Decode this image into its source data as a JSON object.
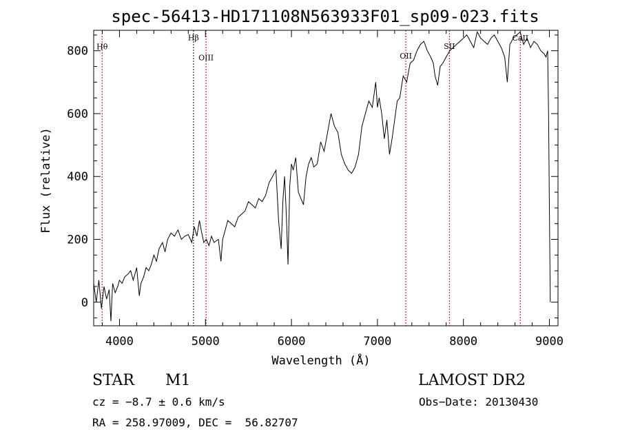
{
  "chart_data": {
    "type": "line",
    "title": "spec-56413-HD171108N563933F01_sp09-023.fits",
    "xlabel": "Wavelength (Å)",
    "ylabel": "Flux (relative)",
    "xlim": [
      3700,
      9100
    ],
    "ylim": [
      -75,
      865
    ],
    "xticks": [
      4000,
      5000,
      6000,
      7000,
      8000,
      9000
    ],
    "yticks": [
      0,
      200,
      400,
      600,
      800
    ],
    "grid": false,
    "series": [
      {
        "x": [
          3700,
          3730,
          3760,
          3790,
          3820,
          3850,
          3880,
          3900,
          3920,
          3950,
          3980,
          4000,
          4030,
          4060,
          4100,
          4130,
          4160,
          4200,
          4230,
          4250,
          4280,
          4310,
          4340,
          4370,
          4400,
          4430,
          4460,
          4500,
          4530,
          4560,
          4600,
          4640,
          4680,
          4720,
          4760,
          4800,
          4840,
          4870,
          4900,
          4930,
          4950,
          4980,
          5010,
          5040,
          5070,
          5100,
          5150,
          5180,
          5200,
          5230,
          5260,
          5300,
          5340,
          5380,
          5420,
          5460,
          5500,
          5540,
          5580,
          5620,
          5660,
          5700,
          5740,
          5780,
          5820,
          5850,
          5880,
          5900,
          5920,
          5940,
          5960,
          5980,
          6000,
          6020,
          6050,
          6080,
          6110,
          6140,
          6170,
          6200,
          6230,
          6260,
          6300,
          6340,
          6380,
          6420,
          6460,
          6500,
          6540,
          6580,
          6620,
          6660,
          6700,
          6740,
          6780,
          6820,
          6860,
          6900,
          6940,
          6980,
          7000,
          7020,
          7050,
          7080,
          7110,
          7140,
          7170,
          7200,
          7230,
          7260,
          7300,
          7340,
          7380,
          7420,
          7460,
          7500,
          7540,
          7580,
          7620,
          7650,
          7670,
          7700,
          7730,
          7760,
          7800,
          7840,
          7880,
          7920,
          7960,
          8000,
          8040,
          8080,
          8120,
          8160,
          8200,
          8240,
          8280,
          8320,
          8360,
          8400,
          8440,
          8480,
          8510,
          8540,
          8580,
          8620,
          8660,
          8700,
          8740,
          8780,
          8820,
          8860,
          8900,
          8940,
          8960,
          8980,
          8990,
          9000,
          9010
        ],
        "y": [
          60,
          0,
          70,
          -20,
          50,
          10,
          40,
          -60,
          60,
          30,
          50,
          70,
          60,
          80,
          90,
          100,
          70,
          110,
          20,
          60,
          80,
          110,
          100,
          120,
          150,
          130,
          170,
          190,
          160,
          200,
          220,
          210,
          230,
          200,
          210,
          215,
          190,
          240,
          210,
          260,
          230,
          190,
          200,
          180,
          210,
          190,
          200,
          130,
          200,
          230,
          260,
          250,
          240,
          270,
          280,
          290,
          320,
          310,
          300,
          330,
          320,
          340,
          380,
          400,
          420,
          260,
          170,
          320,
          400,
          280,
          120,
          370,
          440,
          420,
          460,
          350,
          330,
          310,
          400,
          440,
          460,
          430,
          440,
          510,
          480,
          540,
          600,
          560,
          540,
          470,
          440,
          420,
          410,
          430,
          470,
          560,
          600,
          640,
          620,
          700,
          620,
          650,
          600,
          520,
          580,
          470,
          520,
          580,
          640,
          650,
          720,
          700,
          760,
          770,
          800,
          820,
          830,
          800,
          780,
          760,
          720,
          690,
          750,
          760,
          780,
          800,
          810,
          820,
          830,
          840,
          850,
          830,
          810,
          860,
          840,
          830,
          820,
          840,
          850,
          830,
          810,
          780,
          700,
          820,
          840,
          850,
          860,
          820,
          840,
          810,
          830,
          820,
          800,
          790,
          780,
          800,
          600,
          300,
          0
        ]
      }
    ],
    "line_markers": [
      {
        "label": "Hθ",
        "x": 3798,
        "label_y": 805
      },
      {
        "label": "Hβ",
        "x": 4861,
        "label_y": 833
      },
      {
        "label": "OIII",
        "x": 5007,
        "label_y": 770
      },
      {
        "label": "OII",
        "x": 7330,
        "label_y": 775
      },
      {
        "label": "SII",
        "x": 7837,
        "label_y": 806
      },
      {
        "label": "CaII",
        "x": 8662,
        "label_y": 832
      }
    ]
  },
  "info": {
    "object_type": "STAR",
    "subclass": "M1",
    "redshift": "cz = −8.7 ± 0.6 km/s",
    "coords": "RA = 258.97009, DEC =  56.82707",
    "survey": "LAMOST DR2",
    "obs_date": "Obs−Date: 20130430"
  }
}
